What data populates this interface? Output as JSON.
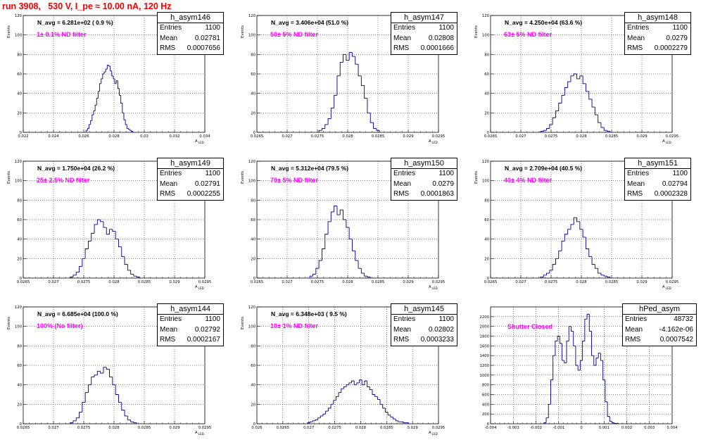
{
  "header": {
    "run_title": "run 3908,   530 V, I_pe ≈ 10.00 nA, 120 Hz"
  },
  "colors": {
    "histogram": "#000080",
    "title_red": "#ee0000",
    "filter_magenta": "#ff00ff",
    "grid": "#000000"
  },
  "chart_data": [
    {
      "type": "bar",
      "name": "h_asym146",
      "navg": "N_avg = 6.281e+02 ( 0.9 %)",
      "filter": "1± 0.1% ND filter",
      "stats": {
        "entries": "1100",
        "mean": "0.02781",
        "rms": "0.0007656"
      },
      "xlabel": "A_LED",
      "ylabel": "Events",
      "xlim": [
        0.022,
        0.034
      ],
      "ylim": [
        0,
        120
      ],
      "xticks": [
        "0.022",
        "0.024",
        "0.026",
        "0.028",
        "0.03",
        "0.032",
        "0.034"
      ],
      "yticks": [
        "0",
        "20",
        "40",
        "60",
        "80",
        "100",
        "120"
      ],
      "x": [
        0.0262,
        0.0263,
        0.0264,
        0.0265,
        0.0266,
        0.0267,
        0.0268,
        0.0269,
        0.027,
        0.0271,
        0.0272,
        0.0273,
        0.0274,
        0.0275,
        0.0276,
        0.0277,
        0.0278,
        0.0279,
        0.028,
        0.0281,
        0.0282,
        0.0283,
        0.0284,
        0.0285,
        0.0286,
        0.0287,
        0.0288,
        0.0289,
        0.029,
        0.0291,
        0.0292
      ],
      "values": [
        2,
        4,
        8,
        12,
        18,
        22,
        28,
        35,
        42,
        50,
        55,
        60,
        62,
        65,
        69,
        68,
        63,
        58,
        55,
        50,
        53,
        45,
        38,
        30,
        20,
        13,
        8,
        4,
        3,
        2,
        1
      ]
    },
    {
      "type": "bar",
      "name": "h_asym147",
      "navg": "N_avg = 3.406e+04 (51.0 %)",
      "filter": "50± 5% ND filter",
      "stats": {
        "entries": "1100",
        "mean": "0.02808",
        "rms": "0.0001666"
      },
      "xlabel": "A_LED",
      "ylabel": "Events",
      "xlim": [
        0.0265,
        0.0295
      ],
      "ylim": [
        0,
        120
      ],
      "xticks": [
        "0.0265",
        "0.027",
        "0.0275",
        "0.028",
        "0.0285",
        "0.029",
        "0.0295"
      ],
      "yticks": [
        "0",
        "20",
        "40",
        "60",
        "80",
        "100",
        "120"
      ],
      "x": [
        0.02755,
        0.0276,
        0.02765,
        0.0277,
        0.02775,
        0.0278,
        0.02785,
        0.0279,
        0.02795,
        0.028,
        0.02805,
        0.0281,
        0.02815,
        0.0282,
        0.02825,
        0.0283,
        0.02835,
        0.0284,
        0.02845,
        0.0285
      ],
      "values": [
        2,
        4,
        8,
        14,
        25,
        38,
        58,
        72,
        80,
        74,
        82,
        78,
        70,
        58,
        48,
        35,
        20,
        10,
        4,
        2
      ]
    },
    {
      "type": "bar",
      "name": "h_asym148",
      "navg": "N_avg = 4.250e+04 (63.6 %)",
      "filter": "63± 5% ND filter",
      "stats": {
        "entries": "1100",
        "mean": "0.0279",
        "rms": "0.0002279"
      },
      "xlabel": "A_LED",
      "ylabel": "Events",
      "xlim": [
        0.0265,
        0.0295
      ],
      "ylim": [
        0,
        120
      ],
      "xticks": [
        "0.0265",
        "0.027",
        "0.0275",
        "0.028",
        "0.0285",
        "0.029",
        "0.0295"
      ],
      "yticks": [
        "0",
        "20",
        "40",
        "60",
        "80",
        "100",
        "120"
      ],
      "x": [
        0.02735,
        0.0274,
        0.02745,
        0.0275,
        0.02755,
        0.0276,
        0.02765,
        0.0277,
        0.02775,
        0.0278,
        0.02785,
        0.0279,
        0.02795,
        0.028,
        0.02805,
        0.0281,
        0.02815,
        0.0282,
        0.02825,
        0.0283,
        0.02835,
        0.0284,
        0.02845
      ],
      "values": [
        1,
        2,
        4,
        8,
        15,
        22,
        30,
        38,
        46,
        52,
        58,
        60,
        55,
        58,
        50,
        42,
        34,
        26,
        18,
        10,
        5,
        2,
        1
      ]
    },
    {
      "type": "bar",
      "name": "h_asym149",
      "navg": "N_avg = 1.750e+04 (26.2 %)",
      "filter": "25± 2.5% ND filter",
      "stats": {
        "entries": "1100",
        "mean": "0.02791",
        "rms": "0.0002255"
      },
      "xlabel": "A_LED",
      "ylabel": "Events",
      "xlim": [
        0.0265,
        0.0295
      ],
      "ylim": [
        0,
        120
      ],
      "xticks": [
        "0.0265",
        "0.027",
        "0.0275",
        "0.028",
        "0.0285",
        "0.029",
        "0.0295"
      ],
      "yticks": [
        "0",
        "20",
        "40",
        "60",
        "80",
        "100",
        "120"
      ],
      "x": [
        0.0273,
        0.02735,
        0.0274,
        0.02745,
        0.0275,
        0.02755,
        0.0276,
        0.02765,
        0.0277,
        0.02775,
        0.0278,
        0.02785,
        0.0279,
        0.02795,
        0.028,
        0.02805,
        0.0281,
        0.02815,
        0.0282,
        0.02825,
        0.0283,
        0.02835,
        0.0284
      ],
      "values": [
        1,
        3,
        6,
        12,
        20,
        30,
        38,
        46,
        55,
        60,
        58,
        52,
        45,
        50,
        48,
        40,
        32,
        22,
        14,
        8,
        4,
        2,
        1
      ]
    },
    {
      "type": "bar",
      "name": "h_asym150",
      "navg": "N_avg = 5.312e+04 (79.5 %)",
      "filter": "79± 5% ND filter",
      "stats": {
        "entries": "1100",
        "mean": "0.0279",
        "rms": "0.0001863"
      },
      "xlabel": "A_LED",
      "ylabel": "Events",
      "xlim": [
        0.0265,
        0.0295
      ],
      "ylim": [
        0,
        120
      ],
      "xticks": [
        "0.0265",
        "0.027",
        "0.0275",
        "0.028",
        "0.0285",
        "0.029",
        "0.0295"
      ],
      "yticks": [
        "0",
        "20",
        "40",
        "60",
        "80",
        "100",
        "120"
      ],
      "x": [
        0.0274,
        0.02745,
        0.0275,
        0.02755,
        0.0276,
        0.02765,
        0.0277,
        0.02775,
        0.0278,
        0.02785,
        0.0279,
        0.02795,
        0.028,
        0.02805,
        0.0281,
        0.02815,
        0.0282,
        0.02825,
        0.0283,
        0.02835
      ],
      "values": [
        2,
        4,
        10,
        18,
        30,
        45,
        58,
        68,
        74,
        65,
        70,
        60,
        52,
        40,
        28,
        18,
        10,
        5,
        2,
        1
      ]
    },
    {
      "type": "bar",
      "name": "h_asym151",
      "navg": "N_avg = 2.709e+04 (40.5 %)",
      "filter": "40± 4% ND filter",
      "stats": {
        "entries": "1100",
        "mean": "0.02794",
        "rms": "0.0002328"
      },
      "xlabel": "A_LED",
      "ylabel": "Events",
      "xlim": [
        0.0265,
        0.0295
      ],
      "ylim": [
        0,
        120
      ],
      "xticks": [
        "0.0265",
        "0.027",
        "0.0275",
        "0.028",
        "0.0285",
        "0.029",
        "0.0295"
      ],
      "yticks": [
        "0",
        "20",
        "40",
        "60",
        "80",
        "100",
        "120"
      ],
      "x": [
        0.02735,
        0.0274,
        0.02745,
        0.0275,
        0.02755,
        0.0276,
        0.02765,
        0.0277,
        0.02775,
        0.0278,
        0.02785,
        0.0279,
        0.02795,
        0.028,
        0.02805,
        0.0281,
        0.02815,
        0.0282,
        0.02825,
        0.0283,
        0.02835,
        0.0284,
        0.02845
      ],
      "values": [
        1,
        3,
        5,
        8,
        14,
        20,
        28,
        38,
        45,
        50,
        55,
        62,
        58,
        50,
        42,
        30,
        22,
        14,
        10,
        5,
        3,
        2,
        1
      ]
    },
    {
      "type": "bar",
      "name": "h_asym144",
      "navg": "N_avg = 6.685e+04 (100.0 %)",
      "filter": "100% (No filter)",
      "stats": {
        "entries": "1100",
        "mean": "0.02792",
        "rms": "0.0002167"
      },
      "xlabel": "A_LED",
      "ylabel": "Events",
      "xlim": [
        0.0265,
        0.0295
      ],
      "ylim": [
        0,
        120
      ],
      "xticks": [
        "0.0265",
        "0.027",
        "0.0275",
        "0.028",
        "0.0285",
        "0.029",
        "0.0295"
      ],
      "yticks": [
        "0",
        "20",
        "40",
        "60",
        "80",
        "100",
        "120"
      ],
      "x": [
        0.0273,
        0.02735,
        0.0274,
        0.02745,
        0.0275,
        0.02755,
        0.0276,
        0.02765,
        0.0277,
        0.02775,
        0.0278,
        0.02785,
        0.0279,
        0.02795,
        0.028,
        0.02805,
        0.0281,
        0.02815,
        0.0282,
        0.02825,
        0.0283,
        0.02835
      ],
      "values": [
        1,
        3,
        6,
        12,
        22,
        32,
        40,
        48,
        50,
        54,
        52,
        58,
        56,
        48,
        40,
        30,
        22,
        14,
        8,
        4,
        2,
        1
      ]
    },
    {
      "type": "bar",
      "name": "h_asym145",
      "navg": "N_avg = 6.348e+03 ( 9.5 %)",
      "filter": "10± 1% ND filter",
      "stats": {
        "entries": "1100",
        "mean": "0.02802",
        "rms": "0.0003233"
      },
      "xlabel": "A_LED",
      "ylabel": "Events",
      "xlim": [
        0.026,
        0.0295
      ],
      "ylim": [
        0,
        120
      ],
      "xticks": [
        "0.026",
        "0.0265",
        "0.027",
        "0.0275",
        "0.028",
        "0.0285",
        "0.029",
        "0.0295"
      ],
      "yticks": [
        "0",
        "20",
        "40",
        "60",
        "80",
        "100",
        "120"
      ],
      "x": [
        0.027,
        0.02705,
        0.0271,
        0.02715,
        0.0272,
        0.02725,
        0.0273,
        0.02735,
        0.0274,
        0.02745,
        0.0275,
        0.02755,
        0.0276,
        0.02765,
        0.0277,
        0.02775,
        0.0278,
        0.02785,
        0.0279,
        0.02795,
        0.028,
        0.02805,
        0.0281,
        0.02815,
        0.0282,
        0.02825,
        0.0283,
        0.02835,
        0.0284,
        0.02845,
        0.0285,
        0.02855,
        0.0286,
        0.02865,
        0.0287,
        0.02875,
        0.0288,
        0.02885,
        0.0289
      ],
      "values": [
        1,
        2,
        3,
        4,
        6,
        8,
        10,
        13,
        16,
        20,
        24,
        28,
        32,
        36,
        38,
        40,
        42,
        44,
        40,
        42,
        45,
        40,
        44,
        38,
        35,
        30,
        28,
        25,
        20,
        16,
        12,
        9,
        7,
        5,
        3,
        2,
        2,
        1,
        1
      ]
    },
    {
      "type": "bar",
      "name": "hPed_asym",
      "navg": "",
      "filter": "Shutter Closed",
      "stats": {
        "entries": "48732",
        "mean": "-4.162e-06",
        "rms": "0.0007542"
      },
      "xlabel": "",
      "ylabel": "",
      "xlim": [
        -0.004,
        0.004
      ],
      "ylim": [
        0,
        2400
      ],
      "xticks": [
        "-0.004",
        "-0.003",
        "-0.002",
        "-0.001",
        "0",
        "0.001",
        "0.002",
        "0.003",
        "0.004"
      ],
      "yticks": [
        "0",
        "200",
        "400",
        "600",
        "800",
        "1000",
        "1200",
        "1400",
        "1600",
        "1800",
        "2000",
        "2200"
      ],
      "x": [
        -0.0016,
        -0.0015,
        -0.0014,
        -0.0013,
        -0.0012,
        -0.0011,
        -0.001,
        -0.0009,
        -0.0008,
        -0.0007,
        -0.0006,
        -0.0005,
        -0.0004,
        -0.0003,
        -0.0002,
        -0.0001,
        0,
        0.0001,
        0.0002,
        0.0003,
        0.0004,
        0.0005,
        0.0006,
        0.0007,
        0.0008,
        0.0009,
        0.001,
        0.0011,
        0.0012,
        0.0013,
        0.0014,
        0.0015,
        0.0016
      ],
      "values": [
        20,
        120,
        400,
        900,
        1400,
        1700,
        1800,
        1650,
        1300,
        1250,
        1700,
        2000,
        1900,
        1600,
        1200,
        1100,
        1300,
        1700,
        2150,
        2250,
        1900,
        1400,
        1200,
        1350,
        1450,
        1300,
        900,
        450,
        150,
        50,
        20,
        10,
        5
      ]
    }
  ]
}
